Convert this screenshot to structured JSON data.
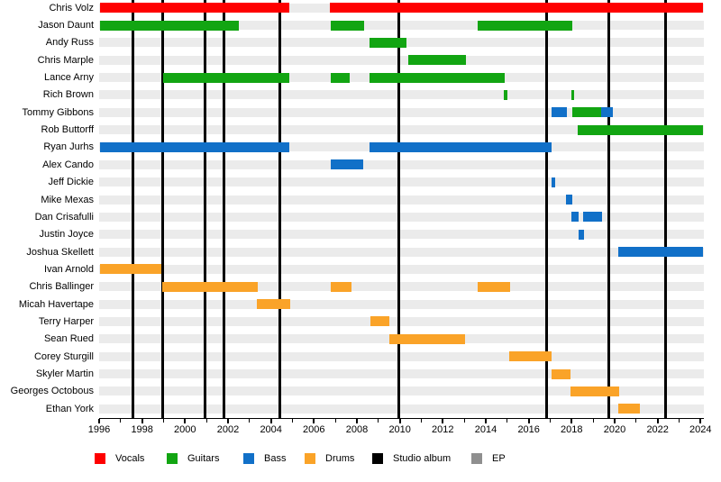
{
  "chart_data": {
    "type": "timeline",
    "subtype": "band-membership-gantt",
    "x_axis": {
      "min": 1996,
      "max": 2024,
      "major_tick_interval": 2,
      "minor_tick_interval": 1,
      "tick_labels": [
        "1996",
        "1998",
        "2000",
        "2002",
        "2004",
        "2006",
        "2008",
        "2010",
        "2012",
        "2014",
        "2016",
        "2018",
        "2020",
        "2022",
        "2024"
      ]
    },
    "colors": {
      "vocals": "#fe0000",
      "guitars": "#12a512",
      "bass": "#1170c8",
      "drums": "#faa328",
      "studio_album": "#000000",
      "ep": "#8f8f8f"
    },
    "members": [
      {
        "name": "Chris Volz",
        "segments": [
          {
            "role": "vocals",
            "start": 1996.02,
            "end": 2004.85
          },
          {
            "role": "vocals",
            "start": 2006.75,
            "end": 2024.1
          }
        ]
      },
      {
        "name": "Jason Daunt",
        "segments": [
          {
            "role": "guitars",
            "start": 1996.02,
            "end": 2002.5
          },
          {
            "role": "guitars",
            "start": 2006.77,
            "end": 2008.33
          },
          {
            "role": "guitars",
            "start": 2013.62,
            "end": 2018.03
          }
        ]
      },
      {
        "name": "Andy Russ",
        "segments": [
          {
            "role": "guitars",
            "start": 2008.59,
            "end": 2010.31
          }
        ]
      },
      {
        "name": "Chris Marple",
        "segments": [
          {
            "role": "guitars",
            "start": 2010.39,
            "end": 2013.06
          }
        ]
      },
      {
        "name": "Lance Arny",
        "segments": [
          {
            "role": "guitars",
            "start": 1998.98,
            "end": 2004.85
          },
          {
            "role": "guitars",
            "start": 2006.77,
            "end": 2007.68
          },
          {
            "role": "guitars",
            "start": 2008.59,
            "end": 2014.88
          }
        ]
      },
      {
        "name": "Rich Brown",
        "segments": [
          {
            "role": "guitars",
            "start": 2014.85,
            "end": 2015.0
          },
          {
            "role": "guitars",
            "start": 2018.0,
            "end": 2018.13
          }
        ]
      },
      {
        "name": "Tommy Gibbons",
        "segments": [
          {
            "role": "bass",
            "start": 2017.06,
            "end": 2017.78
          },
          {
            "role": "guitars",
            "start": 2018.03,
            "end": 2019.36
          },
          {
            "role": "bass",
            "start": 2019.36,
            "end": 2019.92
          }
        ]
      },
      {
        "name": "Rob Buttorff",
        "segments": [
          {
            "role": "guitars",
            "start": 2018.28,
            "end": 2024.1
          }
        ]
      },
      {
        "name": "Ryan Jurhs",
        "segments": [
          {
            "role": "bass",
            "start": 1996.02,
            "end": 2004.85
          },
          {
            "role": "bass",
            "start": 2008.59,
            "end": 2017.05
          }
        ]
      },
      {
        "name": "Alex Cando",
        "segments": [
          {
            "role": "bass",
            "start": 2006.77,
            "end": 2008.31
          }
        ]
      },
      {
        "name": "Jeff Dickie",
        "segments": [
          {
            "role": "bass",
            "start": 2017.07,
            "end": 2017.25
          }
        ]
      },
      {
        "name": "Mike Mexas",
        "segments": [
          {
            "role": "bass",
            "start": 2017.75,
            "end": 2018.02
          }
        ]
      },
      {
        "name": "Dan Crisafulli",
        "segments": [
          {
            "role": "bass",
            "start": 2018.0,
            "end": 2018.34
          },
          {
            "role": "bass",
            "start": 2018.52,
            "end": 2019.43
          }
        ]
      },
      {
        "name": "Justin Joyce",
        "segments": [
          {
            "role": "bass",
            "start": 2018.31,
            "end": 2018.59
          }
        ]
      },
      {
        "name": "Joshua Skellett",
        "segments": [
          {
            "role": "bass",
            "start": 2020.17,
            "end": 2024.1
          }
        ]
      },
      {
        "name": "Ivan Arnold",
        "segments": [
          {
            "role": "drums",
            "start": 1996.02,
            "end": 1998.91
          }
        ]
      },
      {
        "name": "Chris Ballinger",
        "segments": [
          {
            "role": "drums",
            "start": 1998.94,
            "end": 2003.38
          },
          {
            "role": "drums",
            "start": 2006.77,
            "end": 2007.75
          },
          {
            "role": "drums",
            "start": 2013.62,
            "end": 2015.13
          }
        ]
      },
      {
        "name": "Micah Havertape",
        "segments": [
          {
            "role": "drums",
            "start": 2003.34,
            "end": 2004.88
          }
        ]
      },
      {
        "name": "Terry Harper",
        "segments": [
          {
            "role": "drums",
            "start": 2008.62,
            "end": 2009.5
          }
        ]
      },
      {
        "name": "Sean Rued",
        "segments": [
          {
            "role": "drums",
            "start": 2009.5,
            "end": 2013.03
          }
        ]
      },
      {
        "name": "Corey Sturgill",
        "segments": [
          {
            "role": "drums",
            "start": 2015.09,
            "end": 2017.05
          }
        ]
      },
      {
        "name": "Skyler Martin",
        "segments": [
          {
            "role": "drums",
            "start": 2017.08,
            "end": 2017.96
          }
        ]
      },
      {
        "name": "Georges Octobous",
        "segments": [
          {
            "role": "drums",
            "start": 2017.93,
            "end": 2020.22
          }
        ]
      },
      {
        "name": "Ethan York",
        "segments": [
          {
            "role": "drums",
            "start": 2020.17,
            "end": 2021.17
          }
        ]
      }
    ],
    "album_lines": [
      1997.58,
      1998.95,
      2000.94,
      2001.8,
      2004.42,
      2009.96,
      2016.81,
      2019.71,
      2022.35
    ],
    "legend_position": "bottom",
    "legend": [
      {
        "label": "Vocals",
        "role": "vocals"
      },
      {
        "label": "Guitars",
        "role": "guitars"
      },
      {
        "label": "Bass",
        "role": "bass"
      },
      {
        "label": "Drums",
        "role": "drums"
      },
      {
        "label": "Studio album",
        "role": "studio_album"
      },
      {
        "label": "EP",
        "role": "ep"
      }
    ]
  }
}
